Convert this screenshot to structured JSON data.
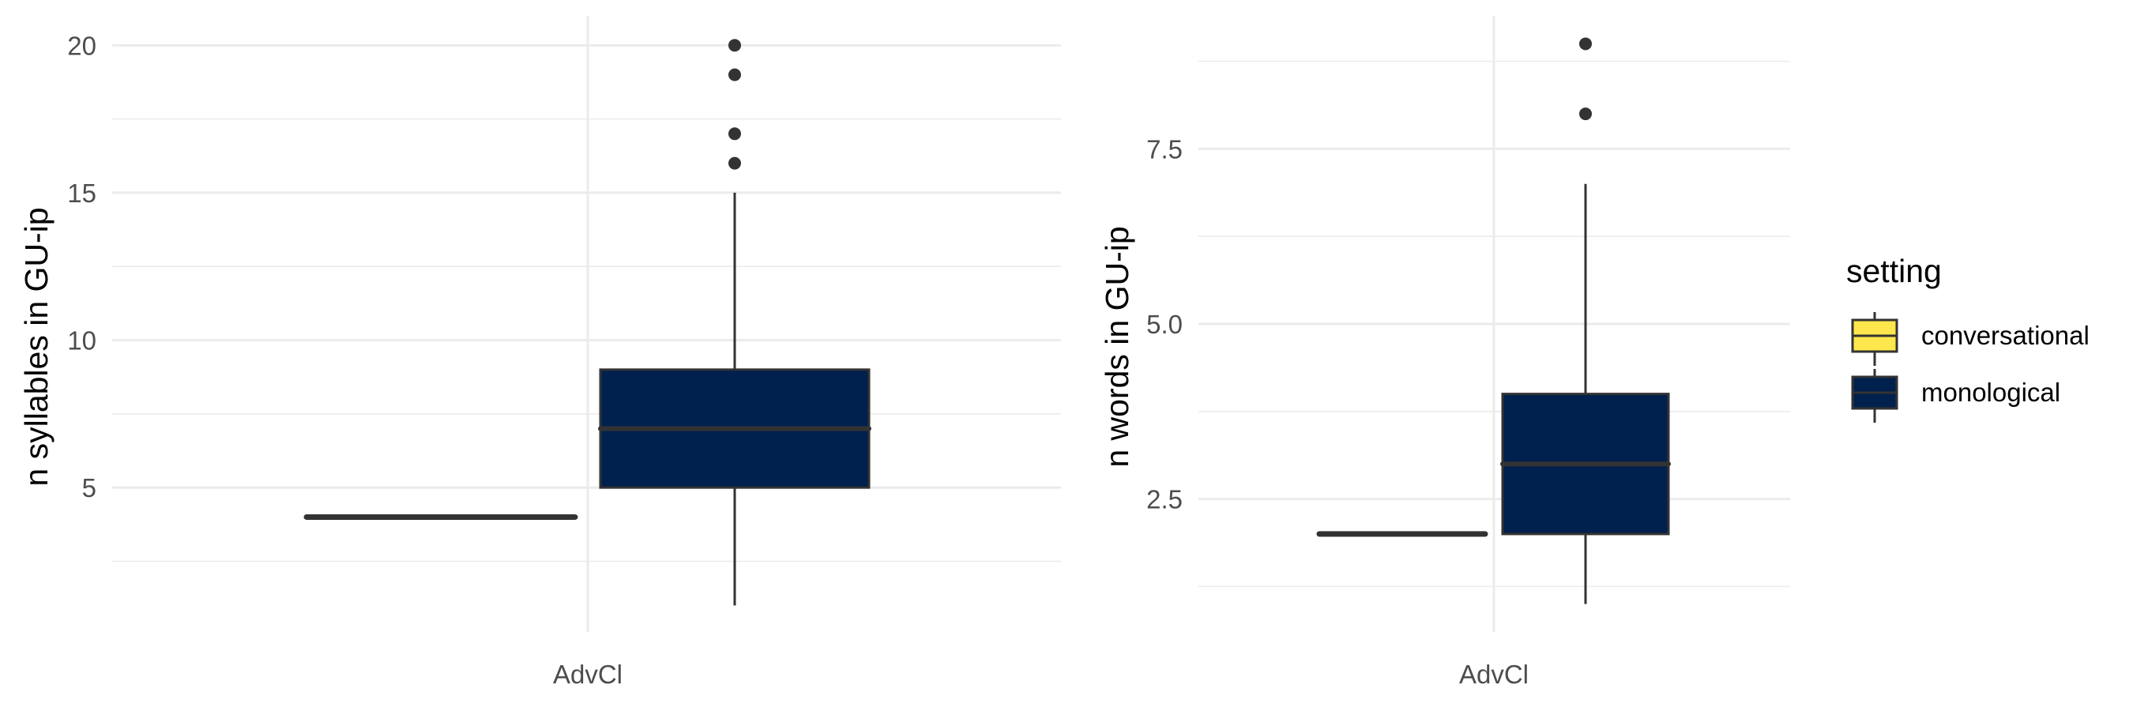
{
  "chart_data": [
    {
      "type": "boxplot",
      "title": "",
      "xlabel": "",
      "ylabel": "n syllables in GU-ip",
      "ylim": [
        0.1,
        21
      ],
      "yticks": [
        5,
        10,
        15,
        20
      ],
      "categories": [
        "AdvCl"
      ],
      "grid": true,
      "series": [
        {
          "name": "conversational",
          "category": "AdvCl",
          "min": 4,
          "q1": 4,
          "median": 4,
          "q3": 4,
          "max": 4,
          "outliers": []
        },
        {
          "name": "monological",
          "category": "AdvCl",
          "min": 1,
          "q1": 5,
          "median": 7,
          "q3": 9,
          "max": 15,
          "outliers": [
            16,
            17,
            19,
            20
          ]
        }
      ]
    },
    {
      "type": "boxplot",
      "title": "",
      "xlabel": "",
      "ylabel": "n words in GU-ip",
      "ylim": [
        0.6,
        9.4
      ],
      "yticks": [
        2.5,
        5.0,
        7.5
      ],
      "categories": [
        "AdvCl"
      ],
      "grid": true,
      "series": [
        {
          "name": "conversational",
          "category": "AdvCl",
          "min": 2,
          "q1": 2,
          "median": 2,
          "q3": 2,
          "max": 2,
          "outliers": []
        },
        {
          "name": "monological",
          "category": "AdvCl",
          "min": 1,
          "q1": 2,
          "median": 3,
          "q3": 4,
          "max": 7,
          "outliers": [
            8,
            9
          ]
        }
      ]
    }
  ],
  "legend": {
    "title": "setting",
    "position": "right",
    "items": [
      {
        "label": "conversational",
        "color": "#FDE74C"
      },
      {
        "label": "monological",
        "color": "#00204D"
      }
    ]
  },
  "style": {
    "box_outline": "#333333",
    "outlier_color": "#333333",
    "grid_color": "#ebebeb"
  }
}
